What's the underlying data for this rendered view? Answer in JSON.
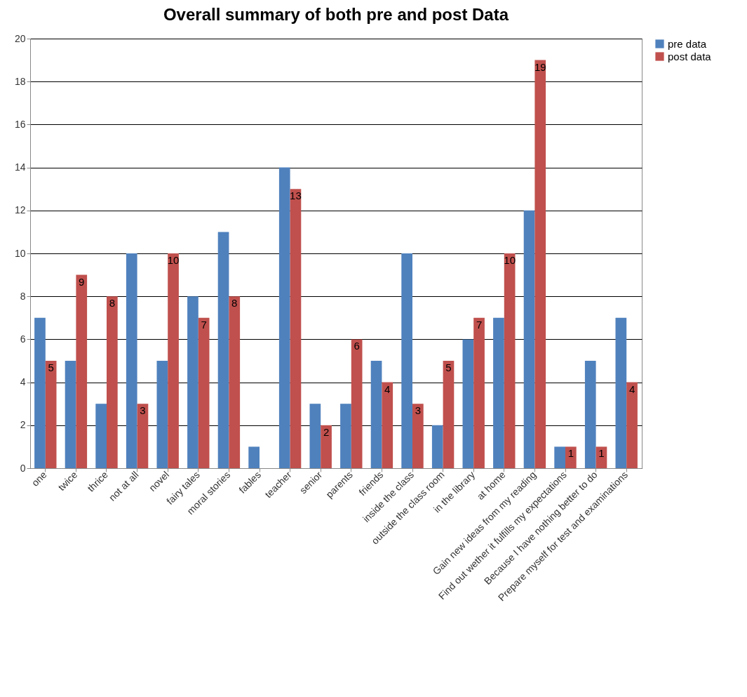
{
  "chart_data": {
    "type": "bar",
    "title": "Overall summary of both pre and post Data",
    "categories": [
      "one",
      "twice",
      "thrice",
      "not at all",
      "novel",
      "fairy tales",
      "moral stories",
      "fables",
      "teacher",
      "senior",
      "parents",
      "friends",
      "inside the class",
      "outside the class room",
      "in the library",
      "at home",
      "Gain new ideas from my reading",
      "Find out wether it fulfills my expectations",
      "Because I have nothing better to do",
      "Prepare myself for test and examinations"
    ],
    "series": [
      {
        "name": "pre data",
        "color": "#4f81bd",
        "values": [
          7,
          5,
          3,
          10,
          5,
          8,
          11,
          1,
          14,
          3,
          3,
          5,
          10,
          2,
          6,
          7,
          12,
          1,
          5,
          7
        ]
      },
      {
        "name": "post data",
        "color": "#c0504d",
        "values": [
          5,
          9,
          8,
          3,
          10,
          7,
          8,
          null,
          13,
          2,
          6,
          4,
          3,
          5,
          7,
          10,
          19,
          1,
          1,
          4
        ],
        "value_labels": [
          "5",
          "9",
          "8",
          "3",
          "10",
          "7",
          "8",
          null,
          "13",
          "2",
          "6",
          "4",
          "3",
          "5",
          "7",
          "10",
          "19",
          "1",
          "1",
          "4"
        ]
      }
    ],
    "ylim": [
      0,
      20
    ],
    "yticks": [
      0,
      2,
      4,
      6,
      8,
      10,
      12,
      14,
      16,
      18,
      20
    ],
    "grid": "y",
    "legend": "right"
  }
}
